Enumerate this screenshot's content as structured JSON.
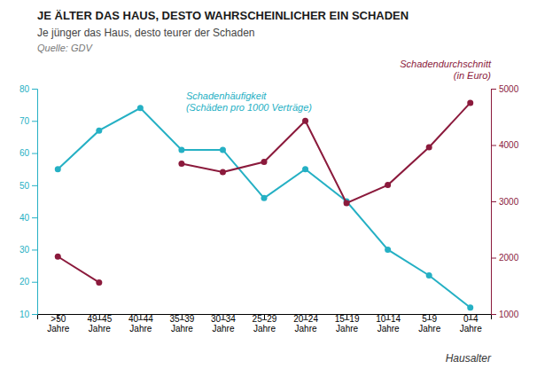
{
  "chart_data": {
    "type": "line",
    "title": "JE ÄLTER DAS HAUS, DESTO WAHRSCHEINLICHER EIN SCHADEN",
    "subtitle": "Je jünger das Haus, desto teurer der Schaden",
    "source": "Quelle: GDV",
    "x_label": "Hausalter",
    "categories": [
      ">50\nJahre",
      "49–45\nJahre",
      "40–44\nJahre",
      "35–39\nJahre",
      "30–34\nJahre",
      "25–29\nJahre",
      "20–24\nJahre",
      "15–19\nJahre",
      "10–14\nJahre",
      "5–9\nJahre",
      "0–4\nJahre"
    ],
    "series": [
      {
        "name": "Schadenhäufigkeit\n(Schäden pro 1000 Verträge)",
        "color": "#25b0c4",
        "marker": "circle",
        "values": [
          55,
          67,
          74,
          61,
          61,
          46,
          55,
          45,
          30,
          22,
          12
        ]
      },
      {
        "name": "Schadendurchschnitt\n(in Euro)",
        "color": "#8b1a3c",
        "marker": "circle",
        "axis": "y2",
        "values": [
          2020,
          1560,
          null,
          3670,
          3520,
          3700,
          4430,
          2970,
          3290,
          3960,
          4750
        ]
      }
    ],
    "ylim": [
      10,
      80
    ],
    "yticks": [
      10,
      20,
      30,
      40,
      50,
      60,
      70,
      80
    ],
    "y2lim": [
      1000,
      5000
    ],
    "y2ticks": [
      1000,
      2000,
      3000,
      4000,
      5000
    ],
    "grid": false
  }
}
